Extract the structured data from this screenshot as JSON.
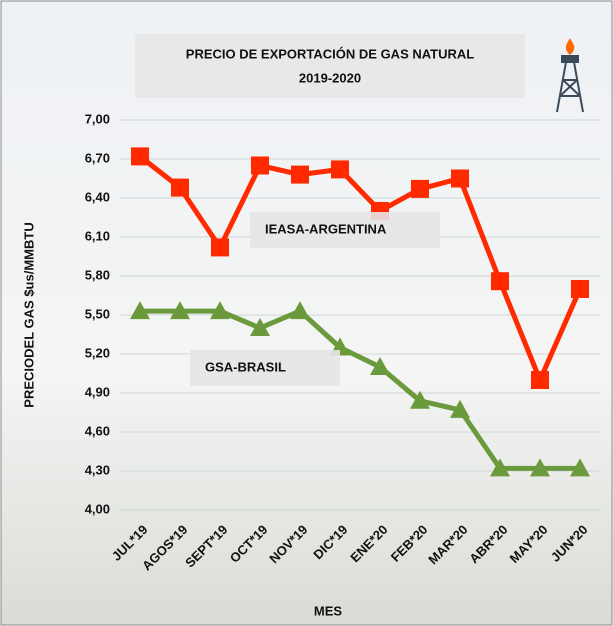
{
  "chart_data": {
    "type": "line",
    "title": "PRECIO DE EXPORTACIÓN DE GAS NATURAL",
    "subtitle": "2019-2020",
    "x_label": "MES",
    "y_label": "PRECIODEL GAS $us/MMBTU",
    "categories": [
      "JUL*19",
      "AGOS*19",
      "SEPT*19",
      "OCT*19",
      "NOV*19",
      "DIC*19",
      "ENE*20",
      "FEB*20",
      "MAR*20",
      "ABR*20",
      "MAY*20",
      "JUN*20"
    ],
    "series": [
      {
        "name": "IEASA-ARGENTINA",
        "color": "#ff2a00",
        "marker": "square",
        "values": [
          6.72,
          6.48,
          6.02,
          6.65,
          6.58,
          6.62,
          6.3,
          6.47,
          6.55,
          5.76,
          5.0,
          5.7
        ]
      },
      {
        "name": "GSA-BRASIL",
        "color": "#6a9a3c",
        "marker": "triangle",
        "values": [
          5.53,
          5.53,
          5.53,
          5.4,
          5.53,
          5.25,
          5.1,
          4.84,
          4.77,
          4.32,
          4.32,
          4.32
        ]
      }
    ],
    "ylim": [
      4.0,
      7.0
    ],
    "yticks": [
      {
        "value": 4.0,
        "label": "4,00"
      },
      {
        "value": 4.3,
        "label": "4,30"
      },
      {
        "value": 4.6,
        "label": "4,60"
      },
      {
        "value": 4.9,
        "label": "4,90"
      },
      {
        "value": 5.2,
        "label": "5,20"
      },
      {
        "value": 5.5,
        "label": "5,50"
      },
      {
        "value": 5.8,
        "label": "5,80"
      },
      {
        "value": 6.1,
        "label": "6,10"
      },
      {
        "value": 6.4,
        "label": "6,40"
      },
      {
        "value": 6.7,
        "label": "6,70"
      },
      {
        "value": 7.0,
        "label": "7,00"
      }
    ],
    "grid": true
  }
}
